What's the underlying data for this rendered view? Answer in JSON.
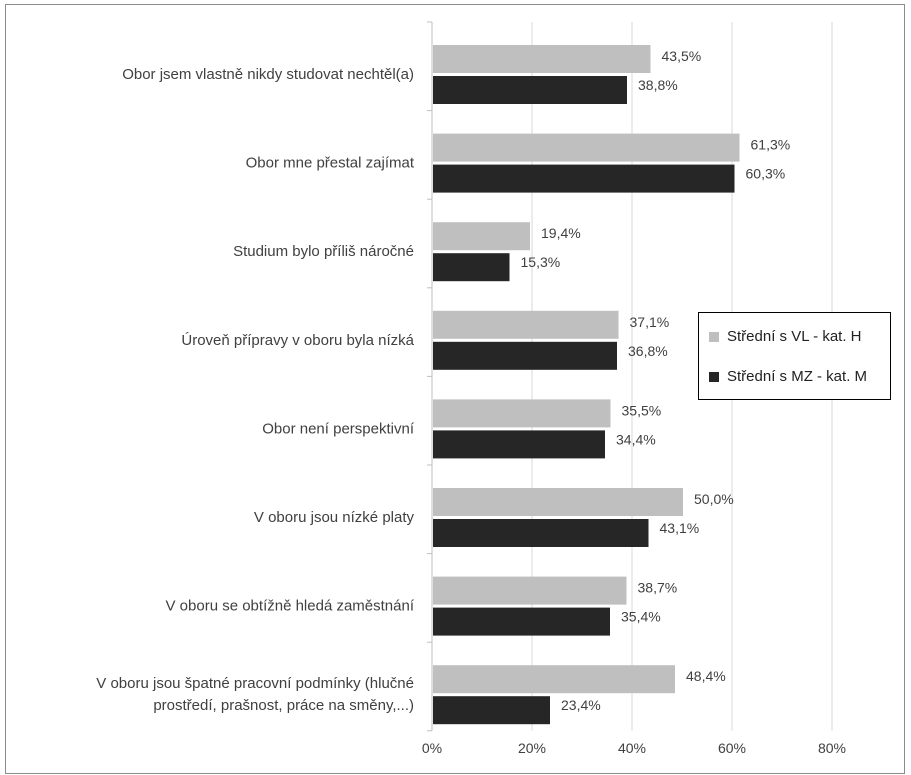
{
  "chart_data": {
    "type": "bar",
    "orientation": "horizontal",
    "categories": [
      [
        "Obor jsem vlastně nikdy studovat nechtěl(a)"
      ],
      [
        "Obor mne přestal zajímat"
      ],
      [
        "Studium bylo příliš náročné"
      ],
      [
        "Úroveň přípravy v oboru byla nízká"
      ],
      [
        "Obor není perspektivní"
      ],
      [
        "V oboru jsou nízké platy"
      ],
      [
        "V oboru se obtížně hledá zaměstnání"
      ],
      [
        "V oboru jsou špatné pracovní podmínky (hlučné",
        "prostředí, prašnost, práce na směny,...)"
      ]
    ],
    "series": [
      {
        "name": "Střední s VL - kat. H",
        "color": "#bfbfbf",
        "values": [
          43.5,
          61.3,
          19.4,
          37.1,
          35.5,
          50.0,
          38.7,
          48.4
        ],
        "labels": [
          "43,5%",
          "61,3%",
          "19,4%",
          "37,1%",
          "35,5%",
          "50,0%",
          "38,7%",
          "48,4%"
        ]
      },
      {
        "name": "Střední s MZ - kat. M",
        "color": "#262626",
        "values": [
          38.8,
          60.3,
          15.3,
          36.8,
          34.4,
          43.1,
          35.4,
          23.4
        ],
        "labels": [
          "38,8%",
          "60,3%",
          "15,3%",
          "36,8%",
          "34,4%",
          "43,1%",
          "35,4%",
          "23,4%"
        ]
      }
    ],
    "xlim": [
      0,
      80
    ],
    "xticks": [
      "0%",
      "20%",
      "40%",
      "60%",
      "80%"
    ],
    "grid": true,
    "legend_position": "right",
    "gridline_color": "#d9d9d9"
  }
}
